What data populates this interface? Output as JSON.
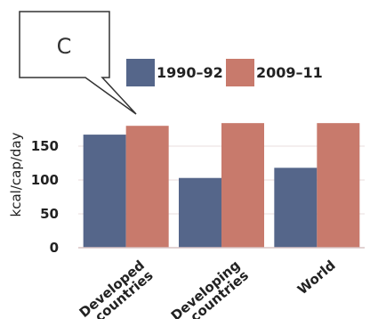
{
  "callout": {
    "label": "C"
  },
  "chart_data": {
    "type": "bar",
    "title": "",
    "xlabel": "",
    "ylabel": "kcal/cap/day",
    "categories": [
      "Developed countries",
      "Developing countries",
      "World"
    ],
    "category_lines": [
      [
        "Developed",
        "countries"
      ],
      [
        "Developing",
        "countries"
      ],
      [
        "World"
      ]
    ],
    "series": [
      {
        "name": "1990–92",
        "values": [
          167,
          103,
          118
        ],
        "color": "#55668a"
      },
      {
        "name": "2009–11",
        "values": [
          180,
          184,
          184
        ],
        "color": "#c87a6c"
      }
    ],
    "ylim": [
      0,
      200
    ],
    "yticks": [
      0,
      50,
      100,
      150
    ],
    "grid": true,
    "legend": "top"
  }
}
